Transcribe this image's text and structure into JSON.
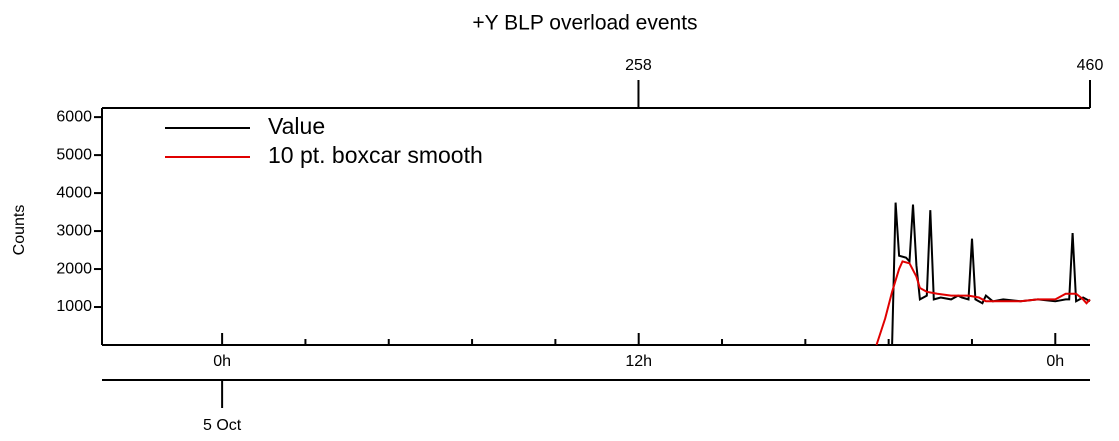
{
  "chart_data": {
    "type": "line",
    "title": "+Y BLP overload events",
    "y_label": "Counts",
    "date_label": {
      "value": 0,
      "label": "5 Oct"
    },
    "xlim": [
      -3.46,
      25.0
    ],
    "xticks": [
      {
        "value": 0,
        "label": "0h"
      },
      {
        "value": 12,
        "label": "12h"
      },
      {
        "value": 24,
        "label": "0h"
      }
    ],
    "xminorticks": [
      2.4,
      4.8,
      7.2,
      9.6,
      14.4,
      16.8,
      19.2,
      21.6
    ],
    "x2lim": [
      18,
      460
    ],
    "x2ticks": [
      258,
      460
    ],
    "ylim": [
      0,
      6240
    ],
    "yticks": [
      1000,
      2000,
      3000,
      4000,
      5000,
      6000
    ],
    "legend": "top-left",
    "series": [
      {
        "name": "Value",
        "color": "#000000",
        "x": [
          19.3,
          19.4,
          19.5,
          19.7,
          19.8,
          19.9,
          20.0,
          20.1,
          20.3,
          20.4,
          20.5,
          20.7,
          21.0,
          21.2,
          21.3,
          21.5,
          21.6,
          21.7,
          21.9,
          22.0,
          22.2,
          22.5,
          23.0,
          23.5,
          24.0,
          24.3,
          24.4,
          24.5,
          24.6,
          24.8,
          25.0
        ],
        "values": [
          0,
          3750,
          2350,
          2300,
          2200,
          3700,
          2100,
          1200,
          1300,
          3550,
          1200,
          1250,
          1200,
          1300,
          1250,
          1200,
          2800,
          1200,
          1100,
          1300,
          1150,
          1200,
          1150,
          1200,
          1150,
          1200,
          1200,
          2950,
          1150,
          1250,
          1150
        ]
      },
      {
        "name": "10 pt. boxcar smooth",
        "color": "#e00000",
        "x": [
          18.85,
          19.1,
          19.3,
          19.5,
          19.6,
          19.8,
          20.0,
          20.1,
          20.3,
          20.6,
          21.0,
          21.5,
          21.8,
          22.0,
          22.5,
          23.0,
          23.5,
          24.0,
          24.3,
          24.6,
          24.8,
          24.9,
          25.0
        ],
        "values": [
          0,
          700,
          1400,
          2000,
          2200,
          2150,
          1800,
          1500,
          1400,
          1350,
          1300,
          1300,
          1250,
          1150,
          1150,
          1150,
          1200,
          1200,
          1350,
          1350,
          1200,
          1100,
          1200
        ]
      }
    ]
  }
}
